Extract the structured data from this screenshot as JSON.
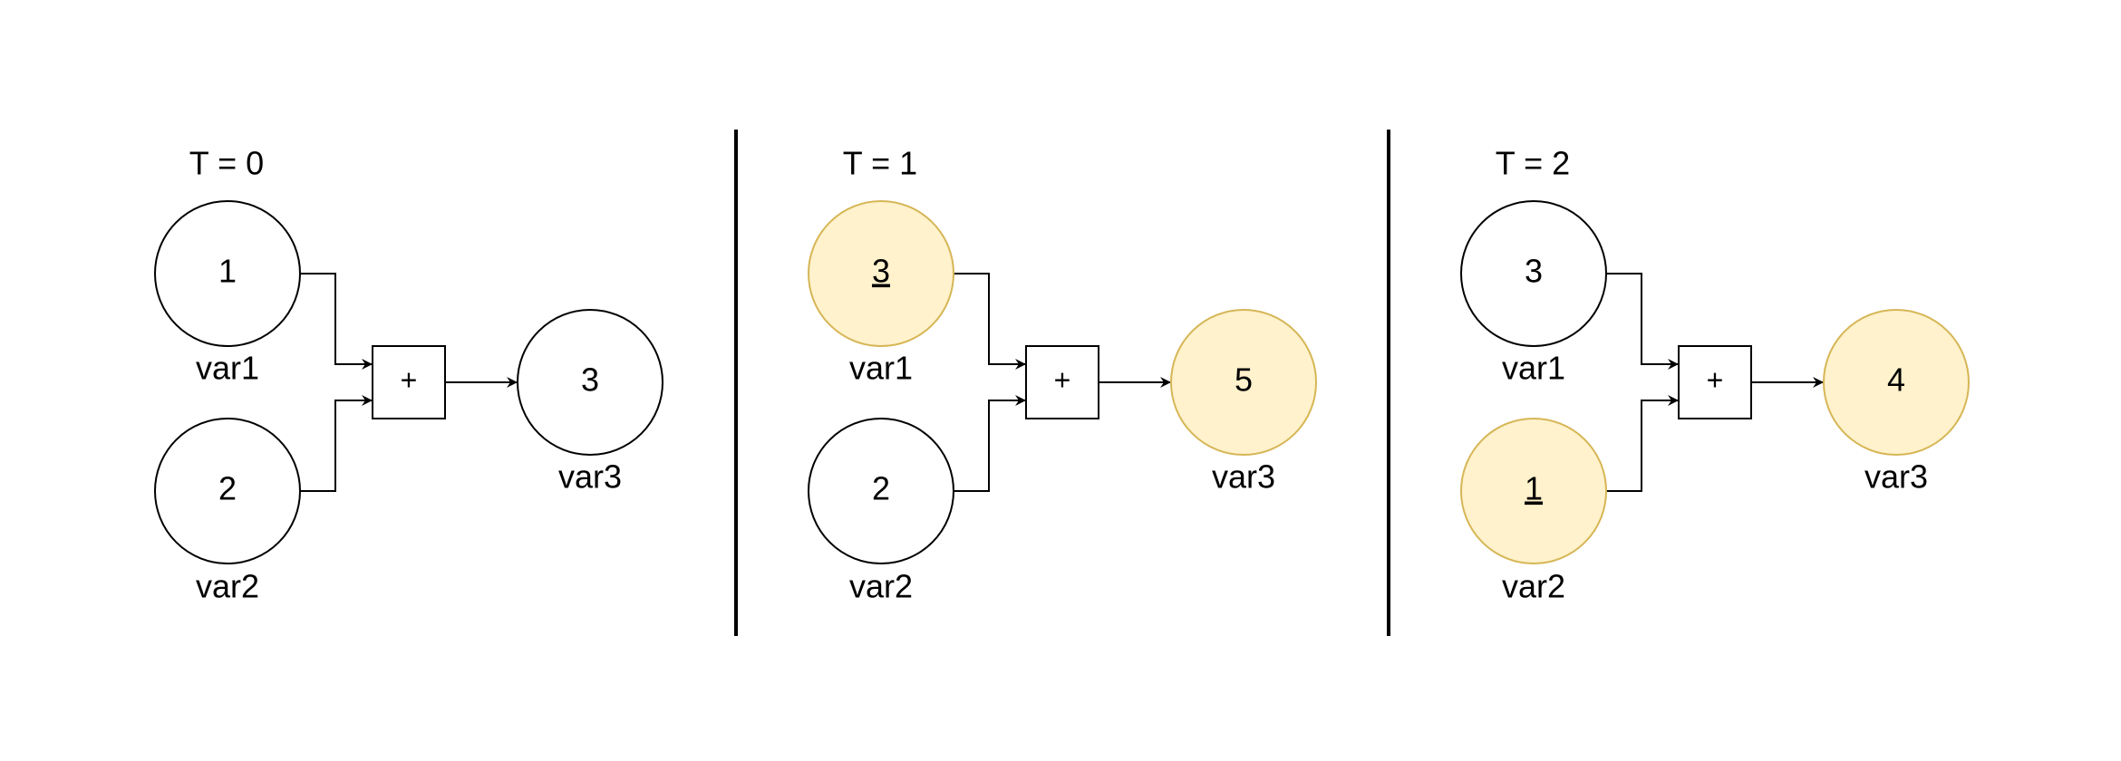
{
  "colors": {
    "default_fill": "#ffffff",
    "default_stroke": "#000000",
    "highlight_fill": "#fff2cc",
    "highlight_stroke": "#d6b656"
  },
  "panels": [
    {
      "title": "T = 0",
      "operator": "+",
      "var1": {
        "name": "var1",
        "value": "1",
        "highlighted": false,
        "underlined": false
      },
      "var2": {
        "name": "var2",
        "value": "2",
        "highlighted": false,
        "underlined": false
      },
      "var3": {
        "name": "var3",
        "value": "3",
        "highlighted": false,
        "underlined": false
      }
    },
    {
      "title": "T = 1",
      "operator": "+",
      "var1": {
        "name": "var1",
        "value": "3",
        "highlighted": true,
        "underlined": true
      },
      "var2": {
        "name": "var2",
        "value": "2",
        "highlighted": false,
        "underlined": false
      },
      "var3": {
        "name": "var3",
        "value": "5",
        "highlighted": true,
        "underlined": false
      }
    },
    {
      "title": "T = 2",
      "operator": "+",
      "var1": {
        "name": "var1",
        "value": "3",
        "highlighted": false,
        "underlined": false
      },
      "var2": {
        "name": "var2",
        "value": "1",
        "highlighted": true,
        "underlined": true
      },
      "var3": {
        "name": "var3",
        "value": "4",
        "highlighted": true,
        "underlined": false
      }
    }
  ]
}
